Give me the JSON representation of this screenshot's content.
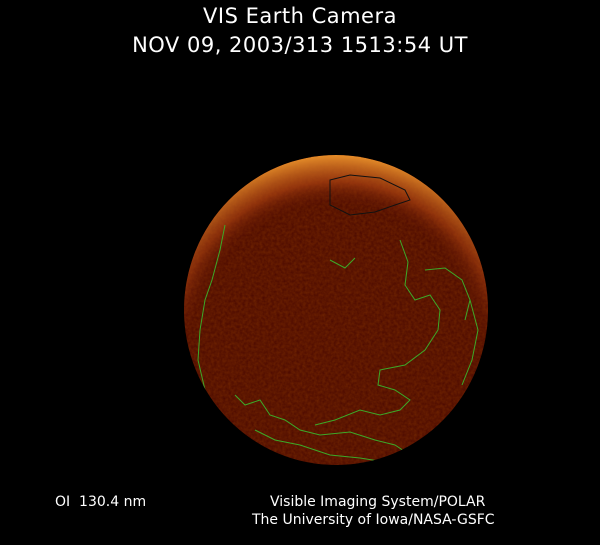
{
  "header": {
    "title": "VIS Earth Camera",
    "timestamp": "NOV 09, 2003/313 1513:54 UT"
  },
  "footer": {
    "wavelength": "OI  130.4 nm",
    "credit_line1": "Visible Imaging System/POLAR",
    "credit_line2": "The University of Iowa/NASA-GSFC"
  },
  "image": {
    "disc_color": "#4a0800",
    "aurora_color": "#e07a20",
    "coastline_color": "#3caa28",
    "background": "#000000"
  }
}
